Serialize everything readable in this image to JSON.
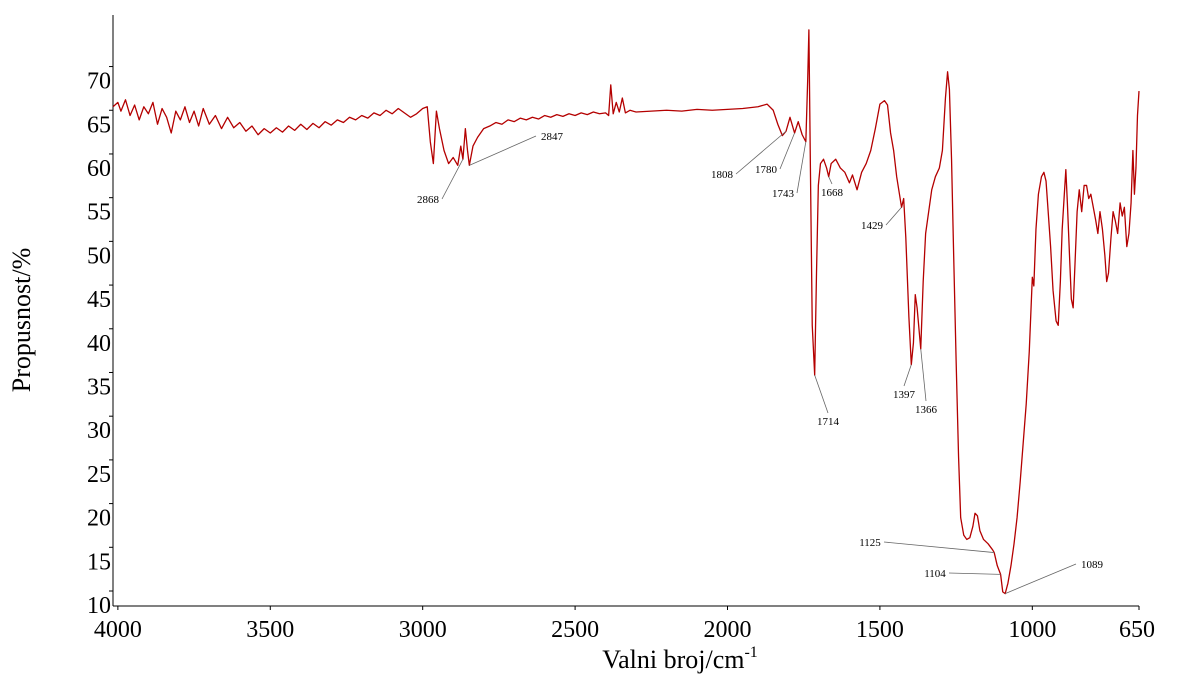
{
  "chart_data": {
    "type": "line",
    "x_label": {
      "text": "Valni broj/cm",
      "superscript": "-1"
    },
    "y_label": "Propusnost/%",
    "xlim": [
      4016,
      650
    ],
    "ylim": [
      10,
      77.5
    ],
    "xticks": [
      4000,
      3500,
      3000,
      2500,
      2000,
      1500,
      1000,
      650
    ],
    "yticks": [
      10,
      15,
      20,
      25,
      30,
      35,
      40,
      45,
      50,
      55,
      60,
      65,
      70
    ],
    "series": [
      {
        "color": "#b40000",
        "x": [
          4016,
          4000,
          3990,
          3975,
          3960,
          3945,
          3930,
          3915,
          3900,
          3885,
          3870,
          3855,
          3840,
          3825,
          3810,
          3795,
          3780,
          3765,
          3750,
          3735,
          3720,
          3700,
          3680,
          3660,
          3640,
          3620,
          3600,
          3580,
          3560,
          3540,
          3520,
          3500,
          3480,
          3460,
          3440,
          3420,
          3400,
          3380,
          3360,
          3340,
          3320,
          3300,
          3280,
          3260,
          3240,
          3220,
          3200,
          3180,
          3160,
          3140,
          3120,
          3100,
          3080,
          3060,
          3040,
          3020,
          3000,
          2985,
          2975,
          2965,
          2955,
          2945,
          2930,
          2915,
          2900,
          2885,
          2875,
          2868,
          2860,
          2853,
          2847,
          2835,
          2820,
          2800,
          2780,
          2760,
          2740,
          2720,
          2700,
          2680,
          2660,
          2640,
          2620,
          2600,
          2580,
          2560,
          2540,
          2520,
          2500,
          2480,
          2460,
          2440,
          2420,
          2400,
          2390,
          2383,
          2375,
          2365,
          2355,
          2345,
          2335,
          2320,
          2300,
          2250,
          2200,
          2150,
          2100,
          2050,
          2000,
          1950,
          1900,
          1870,
          1850,
          1835,
          1820,
          1808,
          1795,
          1780,
          1768,
          1755,
          1743,
          1737,
          1733,
          1728,
          1722,
          1714,
          1708,
          1702,
          1695,
          1685,
          1675,
          1668,
          1660,
          1645,
          1630,
          1615,
          1600,
          1590,
          1575,
          1560,
          1545,
          1530,
          1515,
          1500,
          1485,
          1475,
          1465,
          1455,
          1445,
          1429,
          1422,
          1415,
          1405,
          1397,
          1390,
          1384,
          1378,
          1366,
          1358,
          1350,
          1340,
          1330,
          1318,
          1305,
          1295,
          1285,
          1278,
          1272,
          1265,
          1258,
          1250,
          1242,
          1235,
          1225,
          1215,
          1205,
          1195,
          1188,
          1180,
          1172,
          1160,
          1145,
          1130,
          1125,
          1115,
          1104,
          1097,
          1089,
          1080,
          1070,
          1060,
          1050,
          1040,
          1030,
          1020,
          1010,
          1000,
          995,
          988,
          980,
          970,
          962,
          955,
          948,
          940,
          932,
          922,
          915,
          908,
          902,
          895,
          890,
          885,
          878,
          872,
          866,
          860,
          853,
          846,
          838,
          830,
          822,
          815,
          808,
          800,
          792,
          785,
          778,
          770,
          762,
          756,
          750,
          742,
          735,
          728,
          720,
          712,
          705,
          698,
          690,
          683,
          676,
          670,
          665,
          660,
          655,
          650
        ],
        "y": [
          67,
          67.5,
          66.5,
          67.8,
          66,
          67.2,
          65.5,
          67,
          66.2,
          67.5,
          65,
          66.8,
          65.8,
          64,
          66.5,
          65.5,
          67,
          65.2,
          66.5,
          64.8,
          66.8,
          65,
          66,
          64.5,
          65.8,
          64.6,
          65.2,
          64.2,
          64.8,
          63.8,
          64.5,
          64,
          64.6,
          64.1,
          64.8,
          64.3,
          65,
          64.4,
          65.1,
          64.6,
          65.3,
          64.9,
          65.5,
          65.2,
          65.8,
          65.5,
          66,
          65.7,
          66.3,
          66,
          66.6,
          66.2,
          66.8,
          66.3,
          65.8,
          66.2,
          66.8,
          67,
          63,
          60.5,
          66.5,
          64.5,
          62,
          60.5,
          61.2,
          60.3,
          62.5,
          61,
          64.5,
          62,
          60.3,
          62.5,
          63.5,
          64.5,
          64.8,
          65.2,
          65,
          65.5,
          65.3,
          65.7,
          65.5,
          65.8,
          65.6,
          66,
          65.8,
          66.1,
          65.9,
          66.2,
          66,
          66.3,
          66.1,
          66.4,
          66.2,
          66.3,
          66,
          69.5,
          66.2,
          67.5,
          66.4,
          68,
          66.3,
          66.6,
          66.4,
          66.5,
          66.6,
          66.5,
          66.7,
          66.6,
          66.7,
          66.8,
          67,
          67.3,
          66.6,
          65,
          63.7,
          64.2,
          65.8,
          64,
          65.3,
          63.8,
          63,
          70,
          75.8,
          60,
          42,
          36.3,
          48,
          58,
          60.5,
          61,
          60,
          59,
          60.5,
          61,
          60,
          59.5,
          58.3,
          59.2,
          57.5,
          59.5,
          60.5,
          62,
          64.5,
          67.3,
          67.7,
          67.2,
          64,
          62,
          59,
          55.5,
          56.5,
          52,
          43,
          37.5,
          40,
          45.5,
          44,
          39.3,
          47,
          52.5,
          55,
          57.5,
          59,
          60,
          62,
          68,
          71,
          69,
          61,
          50,
          38,
          27,
          20,
          18,
          17.5,
          17.7,
          19,
          20.5,
          20.2,
          18.5,
          17.5,
          17,
          16.3,
          16,
          14.5,
          13.5,
          11.5,
          11.3,
          12.5,
          14.5,
          17,
          20,
          24,
          28.5,
          33,
          39,
          47.5,
          46.5,
          53,
          57,
          59,
          59.5,
          58.5,
          55,
          51,
          46,
          42.5,
          42,
          47,
          53,
          57,
          59.8,
          56,
          50,
          45,
          44,
          49,
          55,
          57.5,
          55,
          58,
          58,
          56.5,
          57,
          55.5,
          54,
          52.5,
          55,
          53,
          50,
          47,
          48,
          52,
          55,
          54,
          52.5,
          56,
          54.5,
          55.5,
          51,
          52.5,
          56,
          62,
          57,
          60,
          66,
          68.8
        ]
      }
    ],
    "annotations": [
      2868,
      2847,
      1808,
      1780,
      1743,
      1714,
      1668,
      1429,
      1397,
      1366,
      1125,
      1104,
      1089
    ]
  }
}
